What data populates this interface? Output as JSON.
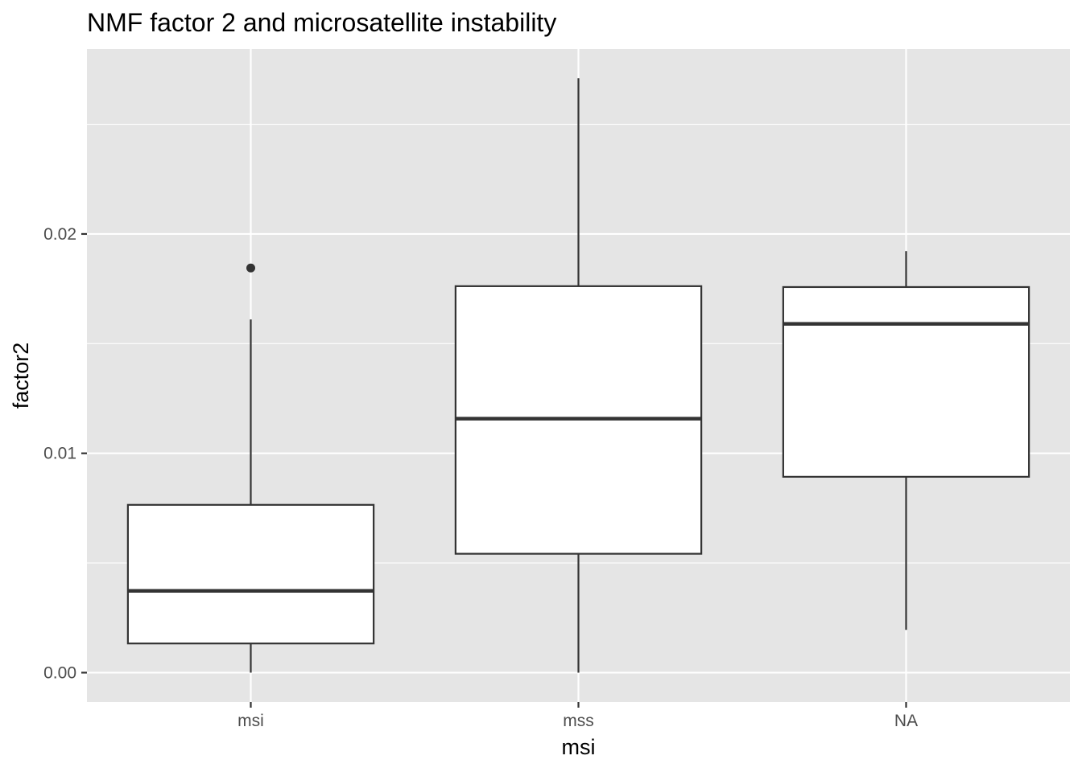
{
  "chart_data": {
    "type": "boxplot",
    "title": "NMF factor 2 and microsatellite instability",
    "xlabel": "msi",
    "ylabel": "factor2",
    "categories": [
      "msi",
      "mss",
      "NA"
    ],
    "boxes": [
      {
        "category": "msi",
        "whisker_low": 0.0,
        "q1": 0.00133,
        "median": 0.00373,
        "q3": 0.00765,
        "whisker_high": 0.0161,
        "outliers": [
          0.01845
        ]
      },
      {
        "category": "mss",
        "whisker_low": 0.0,
        "q1": 0.00542,
        "median": 0.01158,
        "q3": 0.01762,
        "whisker_high": 0.0271,
        "outliers": []
      },
      {
        "category": "NA",
        "whisker_low": 0.00195,
        "q1": 0.00893,
        "median": 0.0159,
        "q3": 0.01758,
        "whisker_high": 0.01922,
        "outliers": []
      }
    ],
    "ylim": [
      -0.00134,
      0.02843
    ],
    "y_ticks": [
      0.0,
      0.01,
      0.02
    ],
    "y_tick_labels": [
      "0.00",
      "0.01",
      "0.02"
    ],
    "y_minor_ticks": [
      0.005,
      0.015,
      0.025
    ],
    "grid": true,
    "colors": {
      "panel": "#e5e5e5",
      "grid": "#ffffff",
      "box_fill": "#ffffff",
      "box_line": "#333333",
      "tick_text": "#4d4d4d"
    }
  }
}
